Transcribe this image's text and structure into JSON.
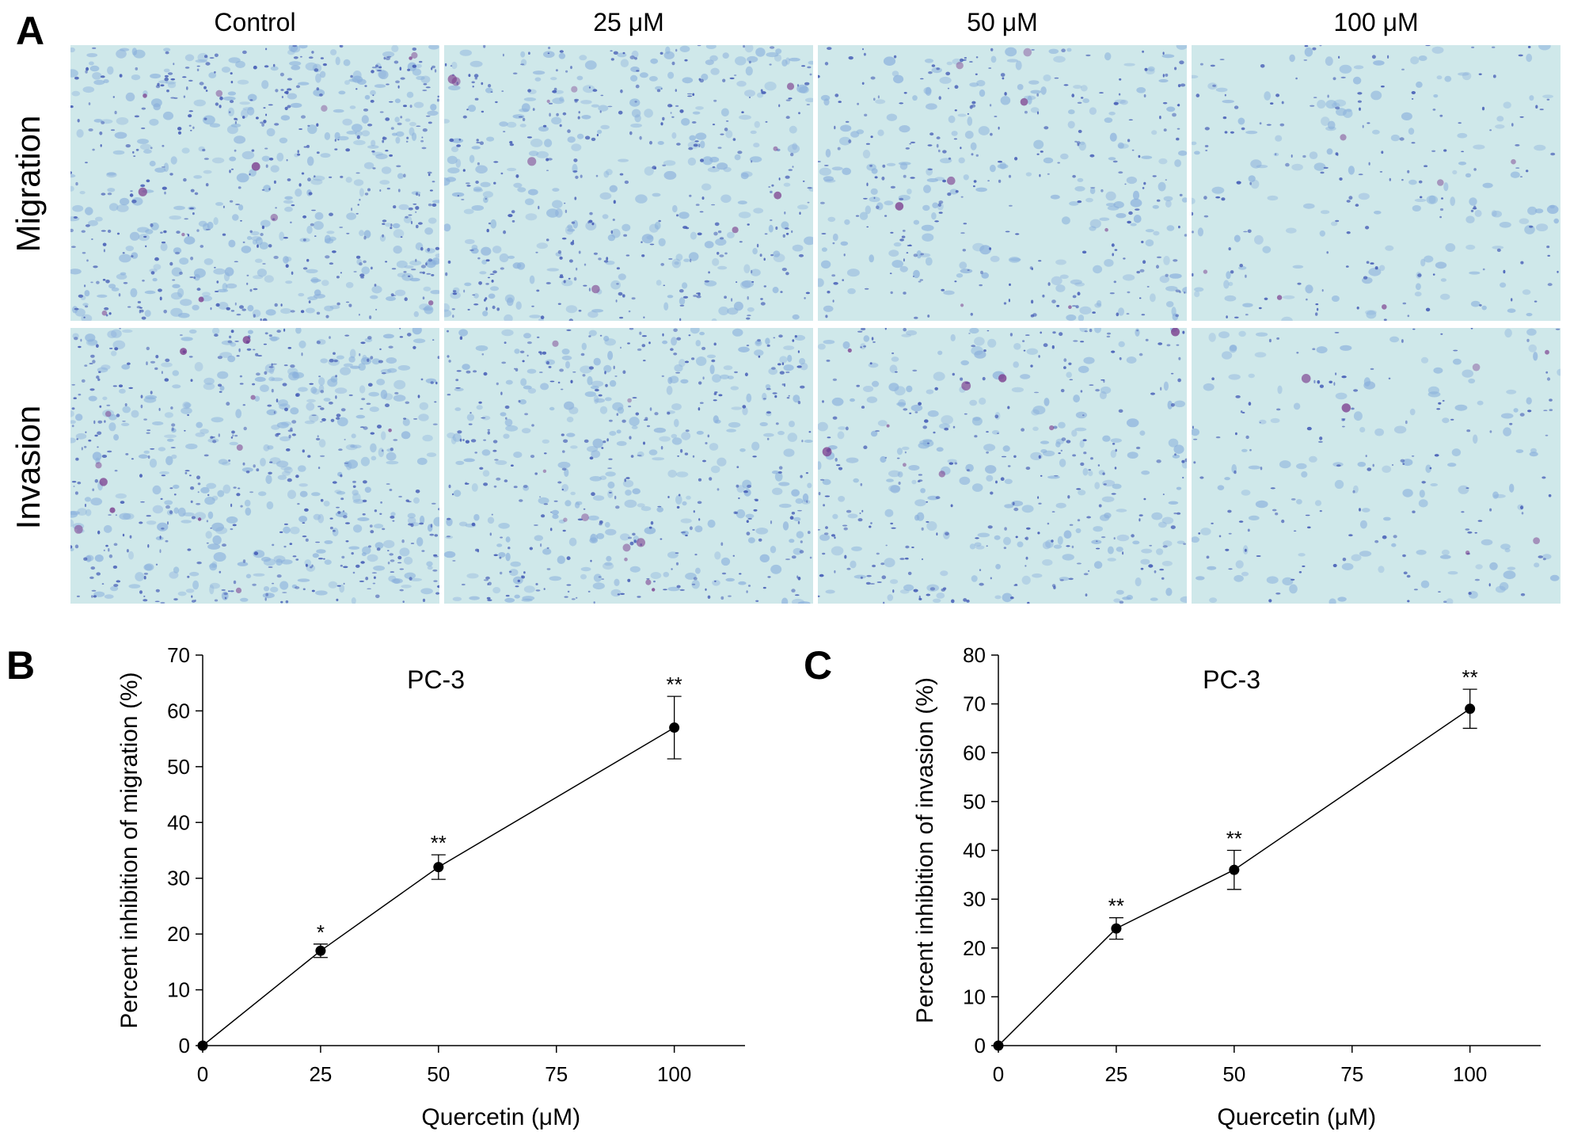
{
  "panel_labels": {
    "a": "A",
    "b": "B",
    "c": "C"
  },
  "microscopy": {
    "columns": [
      "Control",
      "25 μM",
      "50 μM",
      "100 μM"
    ],
    "rows": [
      "Migration",
      "Invasion"
    ],
    "background_color": "#cfe8ea",
    "cell_color": "#4a62b8",
    "cell_color_light": "#8ab0dc",
    "stain_color": "#7a3a8c",
    "relative_cell_density": [
      [
        1.0,
        0.75,
        0.55,
        0.3
      ],
      [
        1.0,
        0.78,
        0.6,
        0.25
      ]
    ]
  },
  "chart_data": [
    {
      "type": "line",
      "title": "PC-3",
      "xlabel": "Quercetin (μM)",
      "ylabel": "Percent inhibition of migration (%)",
      "x": [
        0,
        25,
        50,
        100
      ],
      "y": [
        0,
        17,
        32,
        57
      ],
      "error": [
        0,
        1.2,
        2.2,
        5.6
      ],
      "significance": [
        "",
        "*",
        "**",
        "**"
      ],
      "xlim": [
        0,
        115
      ],
      "ylim": [
        0,
        70
      ],
      "xticks": [
        0,
        25,
        50,
        75,
        100
      ],
      "yticks": [
        0,
        10,
        20,
        30,
        40,
        50,
        60,
        70
      ],
      "grid": false
    },
    {
      "type": "line",
      "title": "PC-3",
      "xlabel": "Quercetin (μM)",
      "ylabel": "Percent inhibition of invasion (%)",
      "x": [
        0,
        25,
        50,
        100
      ],
      "y": [
        0,
        24,
        36,
        69
      ],
      "error": [
        0,
        2.2,
        4.0,
        4.0
      ],
      "significance": [
        "",
        "**",
        "**",
        "**"
      ],
      "xlim": [
        0,
        115
      ],
      "ylim": [
        0,
        80
      ],
      "xticks": [
        0,
        25,
        50,
        75,
        100
      ],
      "yticks": [
        0,
        10,
        20,
        30,
        40,
        50,
        60,
        70,
        80
      ],
      "grid": false
    }
  ]
}
